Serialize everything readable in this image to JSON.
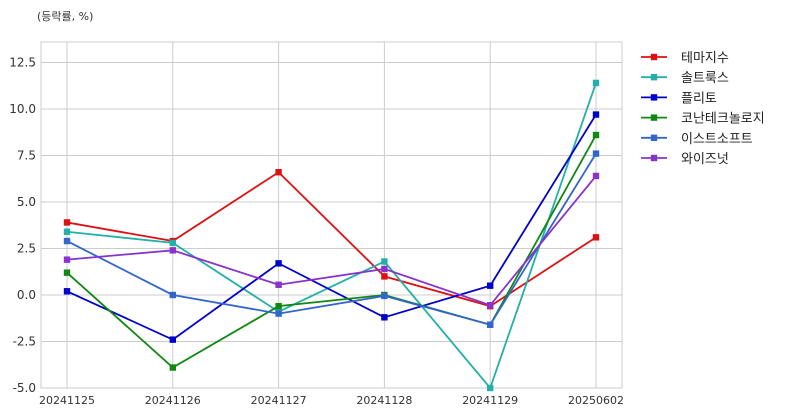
{
  "chart_data": {
    "type": "line",
    "unit_label": "(등락률, %)",
    "categories": [
      "20241125",
      "20241126",
      "20241127",
      "20241128",
      "20241129",
      "20250602"
    ],
    "ylim": [
      -5.0,
      13.6
    ],
    "yticks": [
      -5.0,
      -2.5,
      0.0,
      2.5,
      5.0,
      7.5,
      10.0,
      12.5
    ],
    "grid": true,
    "legend_position": "right-top",
    "series": [
      {
        "name": "테마지수",
        "color": "#dd1111",
        "values": [
          3.9,
          2.9,
          6.6,
          1.0,
          -0.6,
          3.1
        ]
      },
      {
        "name": "솔트룩스",
        "color": "#22b0a8",
        "values": [
          3.4,
          2.8,
          -0.9,
          1.8,
          -5.0,
          11.4
        ]
      },
      {
        "name": "플리토",
        "color": "#0000cc",
        "values": [
          0.2,
          -2.4,
          1.7,
          -1.2,
          0.5,
          9.7
        ]
      },
      {
        "name": "코난테크놀로지",
        "color": "#118811",
        "values": [
          1.2,
          -3.9,
          -0.6,
          0.0,
          -1.6,
          8.6
        ]
      },
      {
        "name": "이스트소프트",
        "color": "#3366cc",
        "values": [
          2.9,
          0.0,
          -1.0,
          -0.05,
          -1.6,
          7.6
        ]
      },
      {
        "name": "와이즈넛",
        "color": "#8833cc",
        "values": [
          1.9,
          2.4,
          0.55,
          1.4,
          -0.55,
          6.4
        ]
      }
    ]
  }
}
